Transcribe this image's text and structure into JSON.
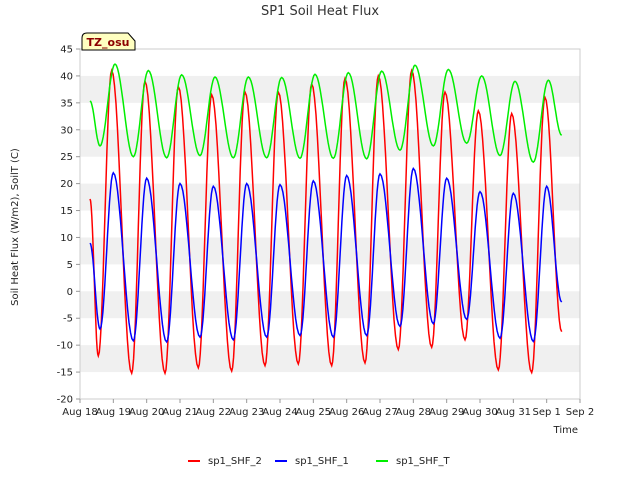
{
  "chart_data": {
    "type": "line",
    "title": "SP1 Soil Heat Flux",
    "xlabel": "Time",
    "ylabel": "Soil Heat Flux (W/m2), SoilT (C)",
    "badge": "TZ_osu",
    "x_tick_labels": [
      "Aug 18",
      "Aug 19",
      "Aug 20",
      "Aug 21",
      "Aug 22",
      "Aug 23",
      "Aug 24",
      "Aug 25",
      "Aug 26",
      "Aug 27",
      "Aug 28",
      "Aug 29",
      "Aug 30",
      "Aug 31",
      "Sep 1",
      "Sep 2"
    ],
    "y_ticks": [
      -20,
      -15,
      -10,
      -5,
      0,
      5,
      10,
      15,
      20,
      25,
      30,
      35,
      40,
      45
    ],
    "xlim": [
      0,
      15
    ],
    "ylim": [
      -20,
      45
    ],
    "grid": "alternating horizontal bands",
    "legend_position": "bottom",
    "series": [
      {
        "name": "sp1_SHF_2",
        "color": "#ff0000",
        "start": 0.3,
        "end": 14.45,
        "daily_peaks": [
          [
            0.95,
            41
          ],
          [
            1.95,
            39
          ],
          [
            2.95,
            38
          ],
          [
            3.95,
            36.5
          ],
          [
            4.95,
            37
          ],
          [
            5.95,
            37
          ],
          [
            6.95,
            38.5
          ],
          [
            7.95,
            39.5
          ],
          [
            8.95,
            40
          ],
          [
            9.95,
            41
          ],
          [
            10.95,
            37
          ],
          [
            11.95,
            33.5
          ],
          [
            12.95,
            33
          ],
          [
            13.95,
            36
          ]
        ],
        "daily_troughs": [
          [
            0.55,
            -12
          ],
          [
            1.55,
            -15.2
          ],
          [
            2.55,
            -15.2
          ],
          [
            3.55,
            -14.2
          ],
          [
            4.55,
            -14.8
          ],
          [
            5.55,
            -13.8
          ],
          [
            6.55,
            -13.5
          ],
          [
            7.55,
            -13.8
          ],
          [
            8.55,
            -13.3
          ],
          [
            9.55,
            -10.8
          ],
          [
            10.55,
            -10.4
          ],
          [
            11.55,
            -9
          ],
          [
            12.55,
            -14.6
          ],
          [
            13.55,
            -15.1
          ]
        ],
        "end_value": -7.5
      },
      {
        "name": "sp1_SHF_1",
        "color": "#0000ff",
        "start": 0.3,
        "end": 14.45,
        "daily_peaks": [
          [
            1.0,
            22
          ],
          [
            2.0,
            21
          ],
          [
            3.0,
            20
          ],
          [
            4.0,
            19.5
          ],
          [
            5.0,
            20
          ],
          [
            6.0,
            19.8
          ],
          [
            7.0,
            20.5
          ],
          [
            8.0,
            21.5
          ],
          [
            9.0,
            21.8
          ],
          [
            10.0,
            22.8
          ],
          [
            11.0,
            21
          ],
          [
            12.0,
            18.5
          ],
          [
            13.0,
            18.2
          ],
          [
            14.0,
            19.5
          ]
        ],
        "daily_troughs": [
          [
            0.6,
            -7
          ],
          [
            1.6,
            -9.2
          ],
          [
            2.6,
            -9.4
          ],
          [
            3.6,
            -8.5
          ],
          [
            4.6,
            -9
          ],
          [
            5.6,
            -8.5
          ],
          [
            6.6,
            -8.2
          ],
          [
            7.6,
            -8.5
          ],
          [
            8.6,
            -8.2
          ],
          [
            9.6,
            -6.5
          ],
          [
            10.6,
            -6
          ],
          [
            11.6,
            -5.2
          ],
          [
            12.6,
            -8.7
          ],
          [
            13.6,
            -9.3
          ]
        ],
        "end_value": -2
      },
      {
        "name": "sp1_SHF_T",
        "color": "#00ee00",
        "start": 0.3,
        "end": 14.45,
        "daily_peaks": [
          [
            1.05,
            42.2
          ],
          [
            2.05,
            41
          ],
          [
            3.05,
            40.2
          ],
          [
            4.05,
            39.8
          ],
          [
            5.05,
            39.8
          ],
          [
            6.05,
            39.7
          ],
          [
            7.05,
            40.3
          ],
          [
            8.05,
            40.6
          ],
          [
            9.05,
            40.9
          ],
          [
            10.05,
            42
          ],
          [
            11.05,
            41.2
          ],
          [
            12.05,
            40
          ],
          [
            13.05,
            39
          ],
          [
            14.05,
            39.2
          ]
        ],
        "daily_troughs": [
          [
            0.6,
            27
          ],
          [
            1.6,
            25
          ],
          [
            2.6,
            24.8
          ],
          [
            3.6,
            25.2
          ],
          [
            4.6,
            24.8
          ],
          [
            5.6,
            24.8
          ],
          [
            6.6,
            24.7
          ],
          [
            7.6,
            24.7
          ],
          [
            8.6,
            24.6
          ],
          [
            9.6,
            26.2
          ],
          [
            10.6,
            27
          ],
          [
            11.6,
            27.5
          ],
          [
            12.6,
            25.2
          ],
          [
            13.6,
            24
          ]
        ],
        "end_value": 29
      }
    ]
  }
}
